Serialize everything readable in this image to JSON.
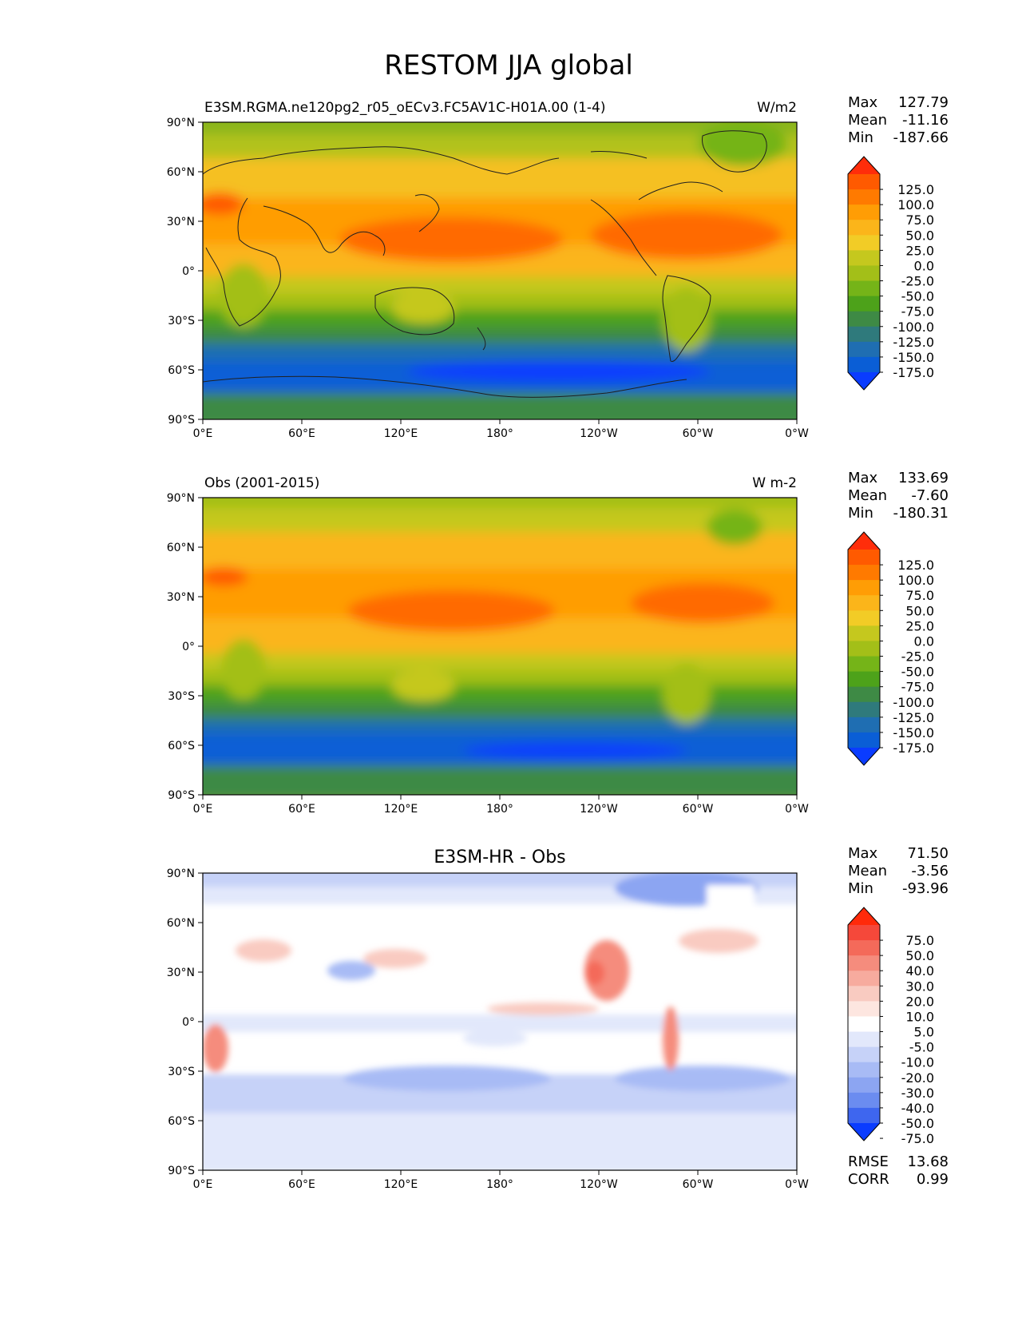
{
  "figure": {
    "title": "RESTOM JJA global"
  },
  "axes": {
    "lat_ticks": [
      "90°N",
      "60°N",
      "30°N",
      "0°",
      "30°S",
      "60°S",
      "90°S"
    ],
    "lon_ticks": [
      "0°E",
      "60°E",
      "120°E",
      "180°",
      "120°W",
      "60°W",
      "0°W"
    ]
  },
  "panels": [
    {
      "id": "test",
      "title_left": "E3SM.RGMA.ne120pg2_r05_oECv3.FC5AV1C-H01A.00 (1-4)",
      "title_center": "",
      "title_right": "W/m2",
      "stats": [
        {
          "label": "Max",
          "value": "127.79"
        },
        {
          "label": "Mean",
          "value": "-11.16"
        },
        {
          "label": "Min",
          "value": "-187.66"
        }
      ],
      "colorbar_labels": [
        "125.0",
        "100.0",
        "75.0",
        "50.0",
        "25.0",
        "0.0",
        "-25.0",
        "-50.0",
        "-75.0",
        "-100.0",
        "-125.0",
        "-150.0",
        "-175.0"
      ],
      "colorbar_colors": [
        "#ff2d0a",
        "#ff5a00",
        "#ff7a00",
        "#ff9d05",
        "#fbb51a",
        "#f2cc26",
        "#c5c81e",
        "#a3bf18",
        "#75b418",
        "#4da21a",
        "#3e8a45",
        "#2f7a7c",
        "#1f6eb2",
        "#0a5ed6",
        "#0a3cff"
      ],
      "metrics": []
    },
    {
      "id": "ref",
      "title_left": "Obs (2001-2015)",
      "title_center": "",
      "title_right": "W m-2",
      "stats": [
        {
          "label": "Max",
          "value": "133.69"
        },
        {
          "label": "Mean",
          "value": "-7.60"
        },
        {
          "label": "Min",
          "value": "-180.31"
        }
      ],
      "colorbar_labels": [
        "125.0",
        "100.0",
        "75.0",
        "50.0",
        "25.0",
        "0.0",
        "-25.0",
        "-50.0",
        "-75.0",
        "-100.0",
        "-125.0",
        "-150.0",
        "-175.0"
      ],
      "colorbar_colors": [
        "#ff2d0a",
        "#ff5a00",
        "#ff7a00",
        "#ff9d05",
        "#fbb51a",
        "#f2cc26",
        "#c5c81e",
        "#a3bf18",
        "#75b418",
        "#4da21a",
        "#3e8a45",
        "#2f7a7c",
        "#1f6eb2",
        "#0a5ed6",
        "#0a3cff"
      ],
      "metrics": []
    },
    {
      "id": "diff",
      "title_left": "",
      "title_center": "E3SM-HR - Obs",
      "title_right": "",
      "stats": [
        {
          "label": "Max",
          "value": "71.50"
        },
        {
          "label": "Mean",
          "value": "-3.56"
        },
        {
          "label": "Min",
          "value": "-93.96"
        }
      ],
      "colorbar_labels": [
        "75.0",
        "50.0",
        "40.0",
        "30.0",
        "20.0",
        "10.0",
        "5.0",
        "-5.0",
        "-10.0",
        "-20.0",
        "-30.0",
        "-40.0",
        "-50.0",
        "-75.0"
      ],
      "colorbar_colors": [
        "#ff2a0a",
        "#f5483a",
        "#f46a5a",
        "#f58c7d",
        "#f7ab9e",
        "#f9cbc1",
        "#fde6e0",
        "#ffffff",
        "#e2e8fb",
        "#c6d2f8",
        "#a8bbf5",
        "#8ca5f2",
        "#6b8cf0",
        "#3e66ef",
        "#0a3cff"
      ],
      "metrics": [
        {
          "label": "RMSE",
          "value": "13.68"
        },
        {
          "label": "CORR",
          "value": "0.99"
        }
      ]
    }
  ]
}
